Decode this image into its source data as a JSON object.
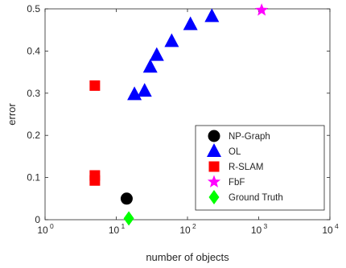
{
  "chart_data": {
    "type": "scatter",
    "xscale": "log",
    "xlabel": "number of objects",
    "ylabel": "error",
    "xlim": [
      1,
      10000
    ],
    "ylim": [
      0,
      0.5
    ],
    "x_ticks": [
      {
        "base": "10",
        "exp": "0",
        "value": 1
      },
      {
        "base": "10",
        "exp": "1",
        "value": 10
      },
      {
        "base": "10",
        "exp": "2",
        "value": 100
      },
      {
        "base": "10",
        "exp": "3",
        "value": 1000
      },
      {
        "base": "10",
        "exp": "4",
        "value": 10000
      }
    ],
    "y_ticks": [
      {
        "label": "0",
        "value": 0
      },
      {
        "label": "0.1",
        "value": 0.1
      },
      {
        "label": "0.2",
        "value": 0.2
      },
      {
        "label": "0.3",
        "value": 0.3
      },
      {
        "label": "0.4",
        "value": 0.4
      },
      {
        "label": "0.5",
        "value": 0.5
      }
    ],
    "grid": false,
    "legend_position": "bottom-right",
    "series": [
      {
        "name": "NP-Graph",
        "marker": "circle",
        "color": "#000000",
        "points": [
          [
            14,
            0.05
          ]
        ]
      },
      {
        "name": "OL",
        "marker": "triangle",
        "color": "#0000ff",
        "points": [
          [
            18,
            0.297
          ],
          [
            25,
            0.305
          ],
          [
            30,
            0.362
          ],
          [
            37,
            0.39
          ],
          [
            60,
            0.423
          ],
          [
            110,
            0.463
          ],
          [
            220,
            0.482
          ]
        ]
      },
      {
        "name": "R-SLAM",
        "marker": "square",
        "color": "#ff0000",
        "points": [
          [
            5,
            0.318
          ],
          [
            5,
            0.105
          ],
          [
            5,
            0.093
          ]
        ]
      },
      {
        "name": "FbF",
        "marker": "star",
        "color": "#ff00ff",
        "points": [
          [
            1100,
            0.497
          ]
        ]
      },
      {
        "name": "Ground Truth",
        "marker": "diamond",
        "color": "#00ff00",
        "points": [
          [
            15,
            0.003
          ]
        ]
      }
    ]
  }
}
